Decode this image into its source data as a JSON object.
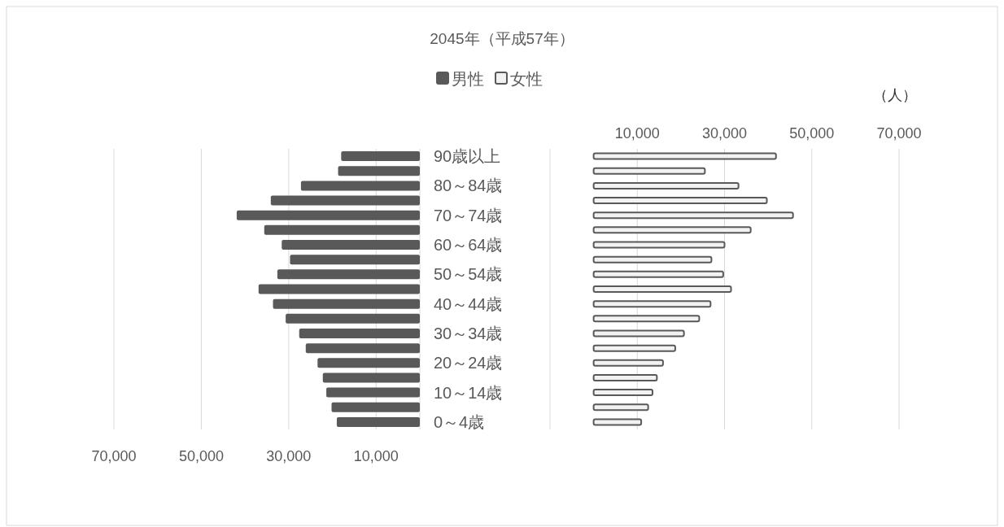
{
  "chart_data": [
    {
      "type": "bar",
      "orientation": "horizontal",
      "title": "2045年（平成57年）",
      "categories": [
        "90歳以上",
        null,
        "80～84歳",
        null,
        "70～74歳",
        null,
        "60～64歳",
        null,
        "50～54歳",
        null,
        "40～44歳",
        null,
        "30～34歳",
        null,
        "20～24歳",
        null,
        "10～14歳",
        null,
        "0～4歳"
      ],
      "series": [
        {
          "name": "男性",
          "color": "#595959",
          "values": [
            18000,
            18700,
            27200,
            34100,
            41900,
            35600,
            31600,
            29700,
            32600,
            36900,
            33600,
            30700,
            27600,
            26100,
            23400,
            22200,
            21400,
            20200,
            19000
          ]
        }
      ],
      "xlim": [
        70000,
        0
      ],
      "xticks": [
        {
          "value": 70000,
          "label": "70,000"
        },
        {
          "value": 50000,
          "label": "50,000"
        },
        {
          "value": 30000,
          "label": "30,000"
        },
        {
          "value": 10000,
          "label": "10,000"
        }
      ],
      "grid": "x",
      "legend": "top"
    },
    {
      "type": "bar",
      "orientation": "horizontal",
      "categories": [
        null,
        null,
        null,
        null,
        null,
        null,
        null,
        null,
        null,
        null,
        null,
        null,
        null,
        null,
        null,
        null,
        null,
        null,
        null
      ],
      "series": [
        {
          "name": "女性",
          "color": "#f2f2f2",
          "values": [
            41800,
            25500,
            33200,
            39700,
            45700,
            36000,
            30000,
            27000,
            29700,
            31500,
            26800,
            24200,
            20700,
            18700,
            15900,
            14500,
            13500,
            12500,
            10900
          ]
        }
      ],
      "xlim": [
        -10000,
        70000
      ],
      "xticks": [
        {
          "value": 10000,
          "label": "10,000"
        },
        {
          "value": 30000,
          "label": "30,000"
        },
        {
          "value": 50000,
          "label": "50,000"
        },
        {
          "value": 70000,
          "label": "70,000"
        }
      ],
      "grid": "x",
      "legend": "top",
      "annotations": [
        "（人）"
      ]
    }
  ]
}
